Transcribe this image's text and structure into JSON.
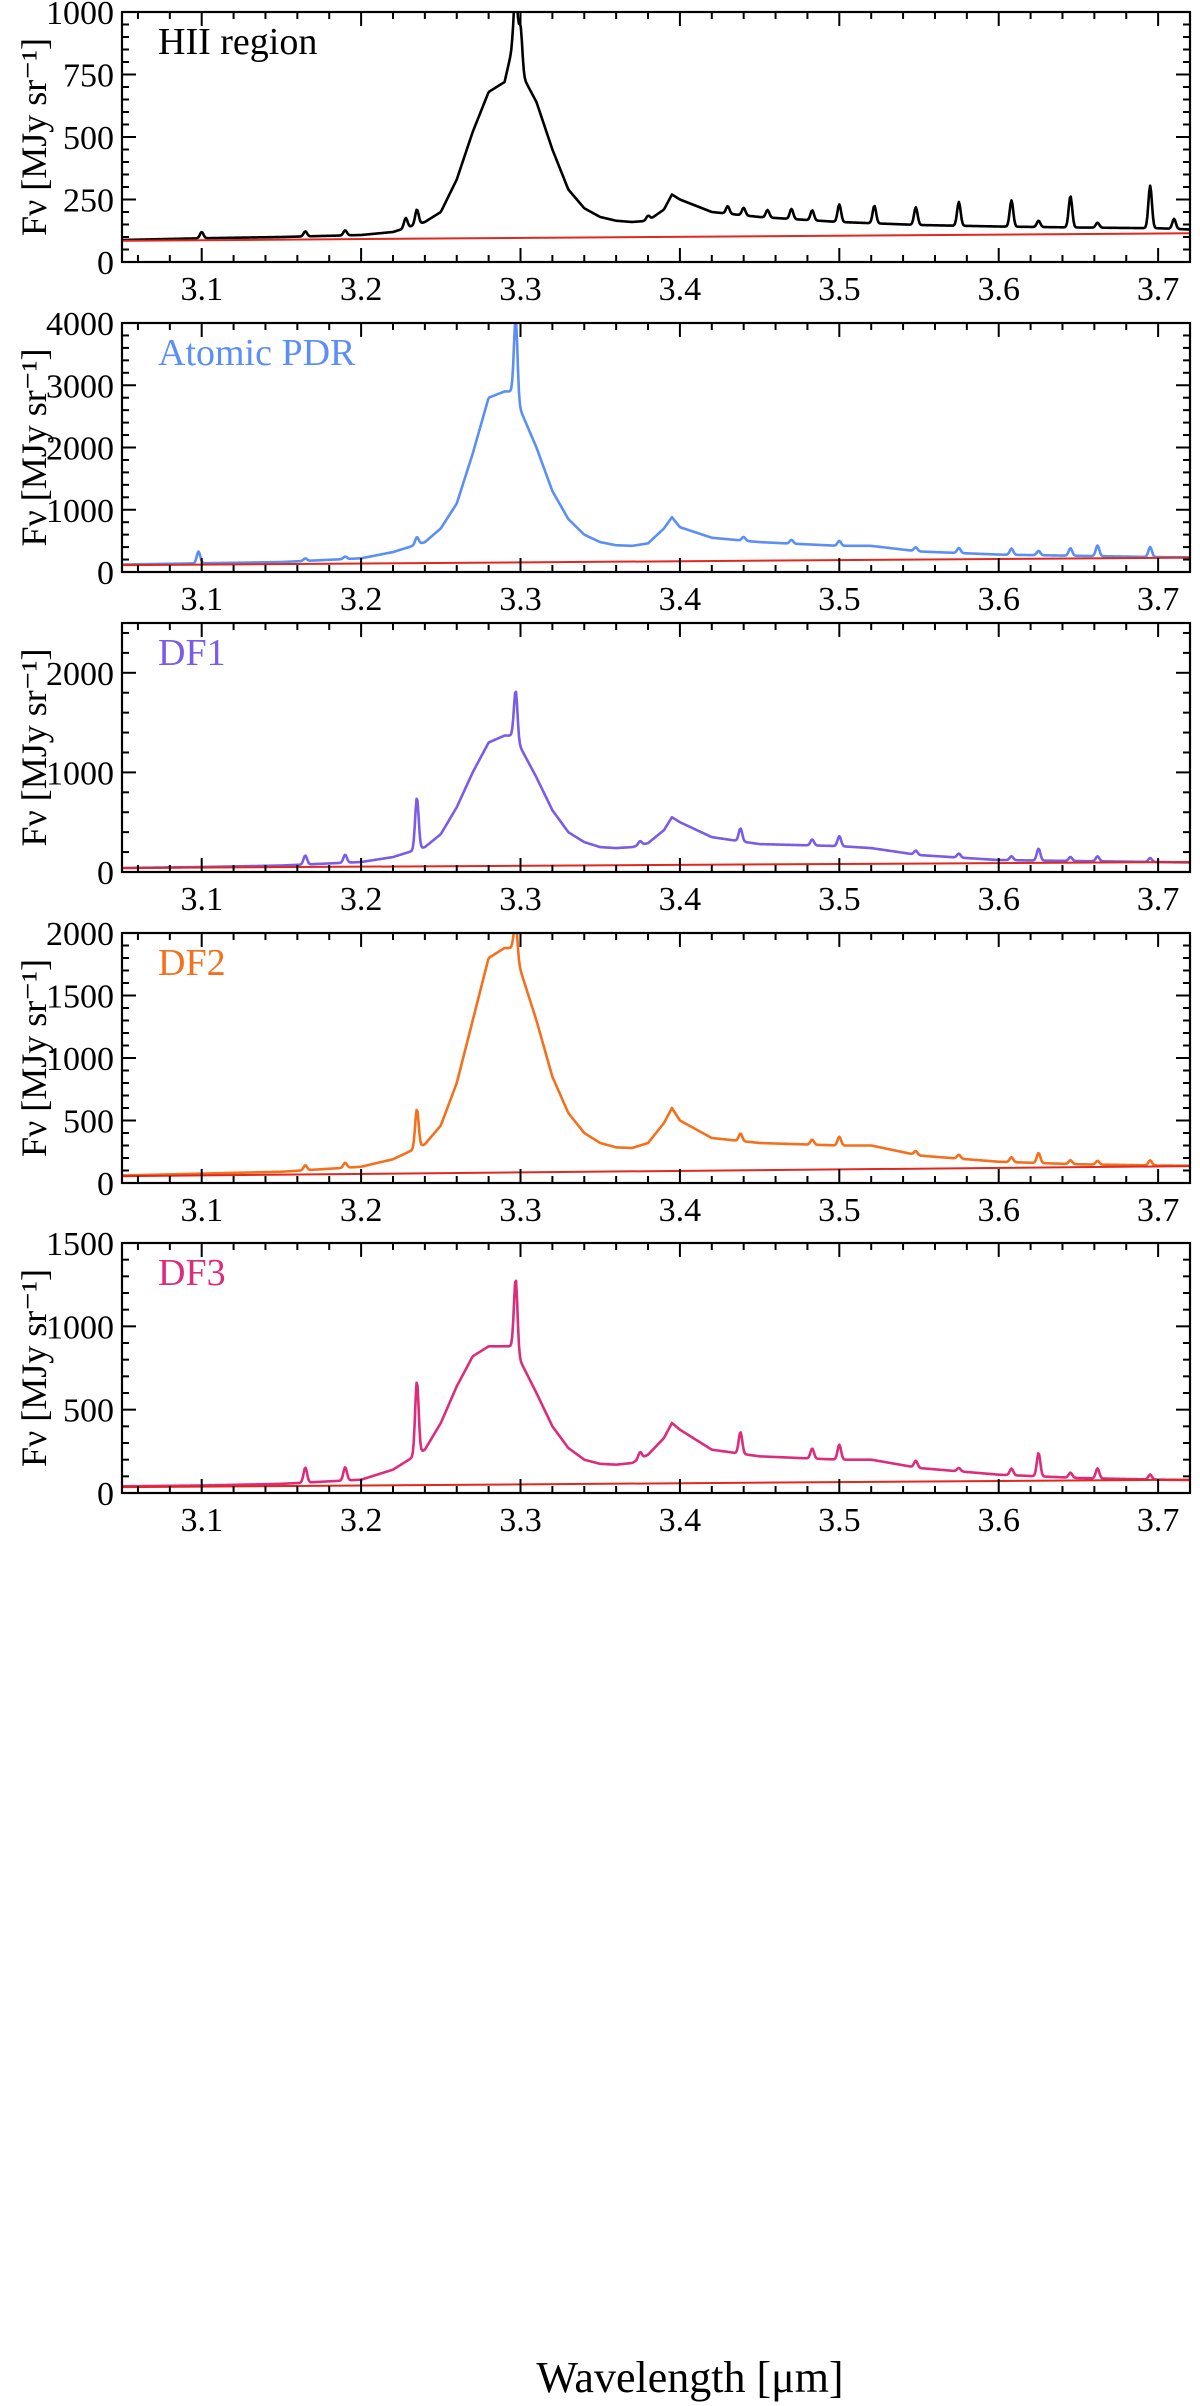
{
  "figure": {
    "xlabel": "Wavelength [μm]",
    "xticks": [
      "3.1",
      "3.2",
      "3.3",
      "3.4",
      "3.5",
      "3.6",
      "3.7"
    ]
  },
  "chart_data": [
    {
      "type": "line",
      "label": "HII region",
      "ylabel": "Fν [MJy sr⁻¹]",
      "xlim": [
        3.05,
        3.72
      ],
      "ylim": [
        0,
        1000
      ],
      "yticks": [
        0,
        250,
        500,
        750,
        1000
      ],
      "color": "#000000",
      "continuum": {
        "color": "#e0281e",
        "x": [
          3.05,
          3.72
        ],
        "y": [
          85,
          115
        ]
      },
      "x": [
        3.05,
        3.1,
        3.15,
        3.2,
        3.22,
        3.24,
        3.25,
        3.26,
        3.27,
        3.28,
        3.29,
        3.295,
        3.3,
        3.31,
        3.32,
        3.33,
        3.34,
        3.35,
        3.36,
        3.37,
        3.38,
        3.39,
        3.395,
        3.4,
        3.42,
        3.45,
        3.5,
        3.55,
        3.6,
        3.65,
        3.7,
        3.72
      ],
      "y": [
        88,
        95,
        100,
        108,
        120,
        160,
        200,
        330,
        520,
        680,
        720,
        860,
        760,
        640,
        450,
        290,
        215,
        180,
        165,
        160,
        165,
        210,
        270,
        250,
        200,
        180,
        160,
        148,
        142,
        138,
        135,
        130
      ],
      "lines": [
        {
          "x": 3.1,
          "h": 25
        },
        {
          "x": 3.165,
          "h": 20
        },
        {
          "x": 3.19,
          "h": 20
        },
        {
          "x": 3.228,
          "h": 40
        },
        {
          "x": 3.235,
          "h": 60
        },
        {
          "x": 3.297,
          "h": 280
        },
        {
          "x": 3.3,
          "h": 180
        },
        {
          "x": 3.38,
          "h": 20
        },
        {
          "x": 3.43,
          "h": 30
        },
        {
          "x": 3.44,
          "h": 30
        },
        {
          "x": 3.455,
          "h": 30
        },
        {
          "x": 3.47,
          "h": 40
        },
        {
          "x": 3.483,
          "h": 40
        },
        {
          "x": 3.5,
          "h": 70
        },
        {
          "x": 3.522,
          "h": 70
        },
        {
          "x": 3.548,
          "h": 70
        },
        {
          "x": 3.575,
          "h": 95
        },
        {
          "x": 3.608,
          "h": 105
        },
        {
          "x": 3.625,
          "h": 25
        },
        {
          "x": 3.645,
          "h": 125
        },
        {
          "x": 3.662,
          "h": 20
        },
        {
          "x": 3.695,
          "h": 170
        },
        {
          "x": 3.71,
          "h": 40
        }
      ]
    },
    {
      "type": "line",
      "label": "Atomic PDR",
      "ylabel": "Fν [MJy sr⁻¹]",
      "xlim": [
        3.05,
        3.72
      ],
      "ylim": [
        0,
        4000
      ],
      "yticks": [
        0,
        1000,
        2000,
        3000,
        4000
      ],
      "color": "#5b8ff5",
      "continuum": {
        "color": "#e0281e",
        "x": [
          3.05,
          3.72
        ],
        "y": [
          110,
          230
        ]
      },
      "x": [
        3.05,
        3.1,
        3.15,
        3.2,
        3.22,
        3.24,
        3.25,
        3.26,
        3.27,
        3.28,
        3.29,
        3.295,
        3.3,
        3.31,
        3.32,
        3.33,
        3.34,
        3.35,
        3.36,
        3.37,
        3.38,
        3.39,
        3.395,
        3.4,
        3.42,
        3.45,
        3.5,
        3.52,
        3.55,
        3.6,
        3.65,
        3.7,
        3.72
      ],
      "y": [
        120,
        140,
        160,
        220,
        320,
        480,
        700,
        1100,
        1900,
        2800,
        2900,
        2900,
        2600,
        2000,
        1300,
        850,
        600,
        480,
        430,
        420,
        460,
        700,
        880,
        720,
        550,
        480,
        420,
        420,
        330,
        280,
        260,
        240,
        235
      ],
      "lines": [
        {
          "x": 3.098,
          "h": 190
        },
        {
          "x": 3.165,
          "h": 40
        },
        {
          "x": 3.19,
          "h": 40
        },
        {
          "x": 3.235,
          "h": 120
        },
        {
          "x": 3.297,
          "h": 1300
        },
        {
          "x": 3.44,
          "h": 60
        },
        {
          "x": 3.47,
          "h": 60
        },
        {
          "x": 3.5,
          "h": 80
        },
        {
          "x": 3.548,
          "h": 60
        },
        {
          "x": 3.575,
          "h": 80
        },
        {
          "x": 3.608,
          "h": 100
        },
        {
          "x": 3.625,
          "h": 70
        },
        {
          "x": 3.645,
          "h": 120
        },
        {
          "x": 3.662,
          "h": 170
        },
        {
          "x": 3.695,
          "h": 160
        }
      ]
    },
    {
      "type": "line",
      "label": "DF1",
      "ylabel": "Fν [MJy sr⁻¹]",
      "xlim": [
        3.05,
        3.72
      ],
      "ylim": [
        0,
        2500
      ],
      "yticks": [
        0,
        1000,
        2000
      ],
      "color": "#7a5ce6",
      "continuum": {
        "color": "#e0281e",
        "x": [
          3.05,
          3.72
        ],
        "y": [
          40,
          100
        ]
      },
      "x": [
        3.05,
        3.1,
        3.15,
        3.2,
        3.22,
        3.24,
        3.25,
        3.26,
        3.27,
        3.28,
        3.29,
        3.295,
        3.3,
        3.31,
        3.32,
        3.33,
        3.34,
        3.35,
        3.36,
        3.37,
        3.38,
        3.39,
        3.395,
        3.4,
        3.42,
        3.45,
        3.5,
        3.52,
        3.55,
        3.6,
        3.65,
        3.7,
        3.72
      ],
      "y": [
        40,
        50,
        65,
        100,
        150,
        250,
        380,
        650,
        1000,
        1300,
        1370,
        1370,
        1250,
        950,
        620,
        400,
        300,
        250,
        240,
        250,
        290,
        420,
        550,
        500,
        350,
        280,
        260,
        240,
        170,
        120,
        110,
        100,
        95
      ],
      "lines": [
        {
          "x": 3.165,
          "h": 90
        },
        {
          "x": 3.19,
          "h": 80
        },
        {
          "x": 3.235,
          "h": 520
        },
        {
          "x": 3.297,
          "h": 500
        },
        {
          "x": 3.375,
          "h": 40
        },
        {
          "x": 3.438,
          "h": 130
        },
        {
          "x": 3.483,
          "h": 60
        },
        {
          "x": 3.5,
          "h": 100
        },
        {
          "x": 3.548,
          "h": 40
        },
        {
          "x": 3.575,
          "h": 40
        },
        {
          "x": 3.608,
          "h": 40
        },
        {
          "x": 3.625,
          "h": 120
        },
        {
          "x": 3.645,
          "h": 40
        },
        {
          "x": 3.662,
          "h": 50
        },
        {
          "x": 3.695,
          "h": 40
        }
      ]
    },
    {
      "type": "line",
      "label": "DF2",
      "ylabel": "Fν [MJy sr⁻¹]",
      "xlim": [
        3.05,
        3.72
      ],
      "ylim": [
        0,
        2000
      ],
      "yticks": [
        0,
        500,
        1000,
        1500,
        2000
      ],
      "color": "#f5701c",
      "continuum": {
        "color": "#e0281e",
        "x": [
          3.05,
          3.72
        ],
        "y": [
          55,
          135
        ]
      },
      "x": [
        3.05,
        3.1,
        3.15,
        3.2,
        3.22,
        3.24,
        3.25,
        3.26,
        3.27,
        3.28,
        3.29,
        3.295,
        3.3,
        3.31,
        3.32,
        3.33,
        3.34,
        3.35,
        3.36,
        3.37,
        3.38,
        3.39,
        3.395,
        3.4,
        3.42,
        3.45,
        3.5,
        3.52,
        3.55,
        3.6,
        3.65,
        3.7,
        3.72
      ],
      "y": [
        60,
        75,
        90,
        130,
        190,
        310,
        460,
        800,
        1300,
        1800,
        1880,
        1880,
        1700,
        1300,
        850,
        560,
        400,
        320,
        285,
        280,
        320,
        480,
        600,
        500,
        360,
        320,
        300,
        300,
        220,
        170,
        150,
        140,
        138
      ],
      "lines": [
        {
          "x": 3.165,
          "h": 40
        },
        {
          "x": 3.19,
          "h": 40
        },
        {
          "x": 3.235,
          "h": 310
        },
        {
          "x": 3.297,
          "h": 280
        },
        {
          "x": 3.438,
          "h": 60
        },
        {
          "x": 3.483,
          "h": 40
        },
        {
          "x": 3.5,
          "h": 70
        },
        {
          "x": 3.548,
          "h": 30
        },
        {
          "x": 3.575,
          "h": 30
        },
        {
          "x": 3.608,
          "h": 40
        },
        {
          "x": 3.625,
          "h": 80
        },
        {
          "x": 3.645,
          "h": 30
        },
        {
          "x": 3.662,
          "h": 30
        },
        {
          "x": 3.695,
          "h": 40
        }
      ]
    },
    {
      "type": "line",
      "label": "DF3",
      "ylabel": "Fν [MJy sr⁻¹]",
      "xlim": [
        3.05,
        3.72
      ],
      "ylim": [
        0,
        1500
      ],
      "yticks": [
        0,
        500,
        1000,
        1500
      ],
      "color": "#dc2c7c",
      "continuum": {
        "color": "#e0281e",
        "x": [
          3.05,
          3.72
        ],
        "y": [
          35,
          80
        ]
      },
      "x": [
        3.05,
        3.1,
        3.15,
        3.2,
        3.22,
        3.24,
        3.25,
        3.26,
        3.27,
        3.28,
        3.29,
        3.295,
        3.3,
        3.31,
        3.32,
        3.33,
        3.34,
        3.35,
        3.36,
        3.37,
        3.38,
        3.39,
        3.395,
        3.4,
        3.42,
        3.45,
        3.5,
        3.52,
        3.55,
        3.6,
        3.65,
        3.7,
        3.72
      ],
      "y": [
        40,
        45,
        55,
        80,
        140,
        260,
        420,
        640,
        820,
        880,
        880,
        880,
        790,
        600,
        400,
        270,
        200,
        175,
        170,
        180,
        230,
        330,
        420,
        380,
        260,
        220,
        200,
        200,
        150,
        110,
        90,
        80,
        78
      ],
      "lines": [
        {
          "x": 3.165,
          "h": 90
        },
        {
          "x": 3.19,
          "h": 80
        },
        {
          "x": 3.235,
          "h": 440
        },
        {
          "x": 3.297,
          "h": 440
        },
        {
          "x": 3.375,
          "h": 40
        },
        {
          "x": 3.438,
          "h": 130
        },
        {
          "x": 3.483,
          "h": 60
        },
        {
          "x": 3.5,
          "h": 90
        },
        {
          "x": 3.548,
          "h": 40
        },
        {
          "x": 3.575,
          "h": 20
        },
        {
          "x": 3.608,
          "h": 40
        },
        {
          "x": 3.625,
          "h": 140
        },
        {
          "x": 3.645,
          "h": 30
        },
        {
          "x": 3.662,
          "h": 60
        },
        {
          "x": 3.695,
          "h": 30
        }
      ]
    }
  ]
}
